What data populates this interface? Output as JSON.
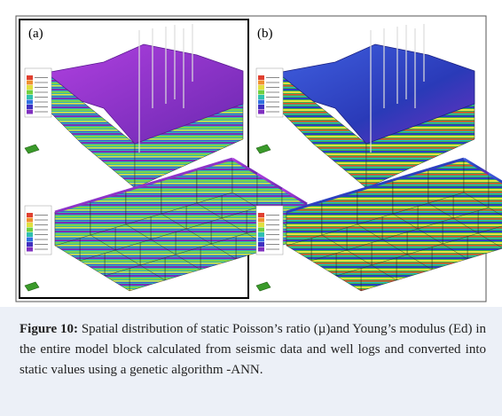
{
  "figure": {
    "panels": [
      {
        "label": "(a)"
      },
      {
        "label": "(b)"
      }
    ],
    "caption": {
      "label": "Figure 10:",
      "text": "Spatial distribution of static Poisson’s ratio (µ)and Young’s modulus (Ed) in the entire model block calculated from seismic data and well logs and converted into static values using a genetic algorithm -ANN."
    }
  }
}
